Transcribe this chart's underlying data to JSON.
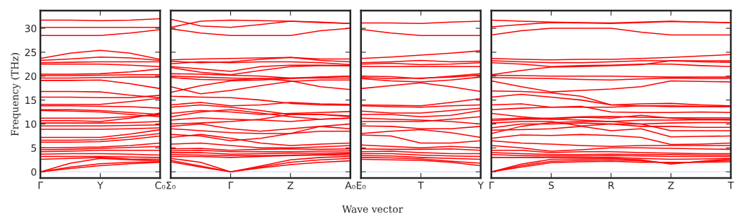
{
  "chart_data": [
    {
      "type": "line",
      "ylabel": "Frequency (THz)",
      "categories": [
        "Γ",
        null,
        "Y",
        null,
        "C₀"
      ],
      "ylim": [
        -1.3,
        33.7
      ],
      "yticks": [
        0,
        5,
        10,
        15,
        20,
        25,
        30
      ],
      "ref_lines": [
        {
          "axis": "y",
          "value": 0,
          "color": "#7777ff",
          "line_style": "dotted"
        }
      ],
      "series": [
        {
          "color": "#ff0000",
          "values": [
            31.7,
            31.7,
            31.6,
            31.7,
            32.0
          ]
        },
        {
          "color": "#ff0000",
          "values": [
            30.2,
            30.2,
            30.2,
            30.2,
            30.2
          ]
        },
        {
          "color": "#ff0000",
          "values": [
            28.5,
            28.5,
            28.5,
            29.0,
            29.7
          ]
        },
        {
          "color": "#ff0000",
          "values": [
            23.7,
            24.8,
            25.4,
            24.8,
            23.5
          ]
        },
        {
          "color": "#ff0000",
          "values": [
            23.3,
            23.6,
            24.0,
            23.8,
            23.3
          ]
        },
        {
          "color": "#ff0000",
          "values": [
            22.8,
            22.9,
            23.0,
            23.0,
            23.0
          ]
        },
        {
          "color": "#ff0000",
          "values": [
            22.5,
            22.5,
            22.5,
            22.3,
            22.0
          ]
        },
        {
          "color": "#ff0000",
          "values": [
            20.4,
            20.4,
            20.5,
            20.9,
            21.5
          ]
        },
        {
          "color": "#ff0000",
          "values": [
            20.1,
            20.1,
            20.2,
            20.3,
            20.3
          ]
        },
        {
          "color": "#ff0000",
          "values": [
            19.6,
            19.6,
            19.7,
            19.8,
            19.8
          ]
        },
        {
          "color": "#ff0000",
          "values": [
            19.1,
            19.1,
            19.2,
            18.4,
            17.4
          ]
        },
        {
          "color": "#ff0000",
          "values": [
            16.8,
            16.8,
            16.7,
            16.0,
            15.5
          ]
        },
        {
          "color": "#ff0000",
          "values": [
            15.6,
            15.6,
            15.5,
            15.5,
            16.0
          ]
        },
        {
          "color": "#ff0000",
          "values": [
            14.1,
            14.1,
            14.1,
            14.7,
            15.4
          ]
        },
        {
          "color": "#ff0000",
          "values": [
            13.8,
            13.8,
            13.7,
            13.6,
            13.3
          ]
        },
        {
          "color": "#ff0000",
          "values": [
            13.0,
            13.0,
            12.8,
            12.4,
            12.0
          ]
        },
        {
          "color": "#ff0000",
          "values": [
            12.8,
            12.7,
            12.5,
            12.0,
            11.5
          ]
        },
        {
          "color": "#ff0000",
          "values": [
            11.2,
            11.2,
            11.2,
            11.5,
            11.9
          ]
        },
        {
          "color": "#ff0000",
          "values": [
            10.7,
            10.7,
            10.5,
            11.2,
            12.3
          ]
        },
        {
          "color": "#ff0000",
          "values": [
            10.2,
            10.2,
            10.2,
            10.3,
            10.5
          ]
        },
        {
          "color": "#ff0000",
          "values": [
            9.6,
            9.6,
            9.6,
            9.7,
            9.8
          ]
        },
        {
          "color": "#ff0000",
          "values": [
            8.9,
            8.9,
            8.9,
            9.0,
            9.2
          ]
        },
        {
          "color": "#ff0000",
          "values": [
            7.2,
            7.2,
            7.2,
            7.9,
            8.8
          ]
        },
        {
          "color": "#ff0000",
          "values": [
            6.6,
            6.6,
            6.7,
            7.3,
            8.0
          ]
        },
        {
          "color": "#ff0000",
          "values": [
            6.2,
            6.2,
            6.3,
            6.8,
            7.5
          ]
        },
        {
          "color": "#ff0000",
          "values": [
            5.0,
            5.1,
            5.2,
            5.5,
            6.0
          ]
        },
        {
          "color": "#ff0000",
          "values": [
            4.6,
            4.7,
            4.9,
            5.1,
            5.3
          ]
        },
        {
          "color": "#ff0000",
          "values": [
            4.2,
            4.3,
            4.5,
            4.5,
            4.5
          ]
        },
        {
          "color": "#ff0000",
          "values": [
            3.7,
            3.8,
            3.8,
            3.7,
            3.5
          ]
        },
        {
          "color": "#ff0000",
          "values": [
            3.2,
            3.2,
            3.2,
            3.1,
            3.0
          ]
        },
        {
          "color": "#ff0000",
          "values": [
            2.6,
            2.8,
            3.0,
            2.7,
            2.6
          ]
        },
        {
          "color": "#ff0000",
          "values": [
            0,
            1.8,
            2.8,
            2.5,
            2.3
          ]
        },
        {
          "color": "#ff0000",
          "values": [
            0,
            1.0,
            1.7,
            2.0,
            2.1
          ]
        },
        {
          "color": "#ff0000",
          "values": [
            0,
            0.7,
            1.3,
            1.7,
            2.0
          ]
        }
      ]
    },
    {
      "type": "line",
      "xlabel": "Wave vector",
      "tick_labels": "x",
      "categories": [
        "Σ₀",
        null,
        "Γ",
        null,
        "Z",
        null,
        "A₀"
      ],
      "ylim": [
        -1.3,
        33.7
      ],
      "yticks": [
        0,
        5,
        10,
        15,
        20,
        25,
        30
      ],
      "ref_lines": [
        {
          "axis": "y",
          "value": 0,
          "color": "#7777ff",
          "line_style": "dotted"
        }
      ],
      "series": [
        {
          "color": "#ff0000",
          "values": [
            31.9,
            30.5,
            30.2,
            30.8,
            31.5,
            31.3,
            31.0
          ]
        },
        {
          "color": "#ff0000",
          "values": [
            30.2,
            31.5,
            31.7,
            31.6,
            31.5,
            31.2,
            31.0
          ]
        },
        {
          "color": "#ff0000",
          "values": [
            29.9,
            29.0,
            28.5,
            28.5,
            28.5,
            29.5,
            30.0
          ]
        },
        {
          "color": "#ff0000",
          "values": [
            23.4,
            23.6,
            23.7,
            23.8,
            23.9,
            23.6,
            23.6
          ]
        },
        {
          "color": "#ff0000",
          "values": [
            23.1,
            22.8,
            23.0,
            23.5,
            23.9,
            23.3,
            23.0
          ]
        },
        {
          "color": "#ff0000",
          "values": [
            22.6,
            23.0,
            22.8,
            23.0,
            23.0,
            22.8,
            22.4
          ]
        },
        {
          "color": "#ff0000",
          "values": [
            22.0,
            21.5,
            21.0,
            22.0,
            22.3,
            22.3,
            22.2
          ]
        },
        {
          "color": "#ff0000",
          "values": [
            21.8,
            20.8,
            20.3,
            21.2,
            22.0,
            22.2,
            22.2
          ]
        },
        {
          "color": "#ff0000",
          "values": [
            20.5,
            20.4,
            20.2,
            20.0,
            19.6,
            19.8,
            20.0
          ]
        },
        {
          "color": "#ff0000",
          "values": [
            20.0,
            19.8,
            19.6,
            19.5,
            19.6,
            19.6,
            19.6
          ]
        },
        {
          "color": "#ff0000",
          "values": [
            19.7,
            19.3,
            19.2,
            19.5,
            19.0,
            17.8,
            17.2
          ]
        },
        {
          "color": "#ff0000",
          "values": [
            17.8,
            16.3,
            17.0,
            18.0,
            18.9,
            19.2,
            19.2
          ]
        },
        {
          "color": "#ff0000",
          "values": [
            16.6,
            18.0,
            19.0,
            19.2,
            19.5,
            19.8,
            20.0
          ]
        },
        {
          "color": "#ff0000",
          "values": [
            15.8,
            15.6,
            15.5,
            15.0,
            14.3,
            14.0,
            13.9
          ]
        },
        {
          "color": "#ff0000",
          "values": [
            14.0,
            14.5,
            13.8,
            14.0,
            14.5,
            14.2,
            14.1
          ]
        },
        {
          "color": "#ff0000",
          "values": [
            13.5,
            14.0,
            13.5,
            12.8,
            12.0,
            12.0,
            11.7
          ]
        },
        {
          "color": "#ff0000",
          "values": [
            12.2,
            12.8,
            12.5,
            12.0,
            12.2,
            12.4,
            12.6
          ]
        },
        {
          "color": "#ff0000",
          "values": [
            11.5,
            12.5,
            13.0,
            12.3,
            11.5,
            11.0,
            11.2
          ]
        },
        {
          "color": "#ff0000",
          "values": [
            10.8,
            11.3,
            11.0,
            10.8,
            10.5,
            11.0,
            11.2
          ]
        },
        {
          "color": "#ff0000",
          "values": [
            10.0,
            10.2,
            10.5,
            11.0,
            12.0,
            12.0,
            11.5
          ]
        },
        {
          "color": "#ff0000",
          "values": [
            9.5,
            10.0,
            9.0,
            8.5,
            9.0,
            9.5,
            10.0
          ]
        },
        {
          "color": "#ff0000",
          "values": [
            9.0,
            8.6,
            8.2,
            8.0,
            8.0,
            8.5,
            8.5
          ]
        },
        {
          "color": "#ff0000",
          "values": [
            7.8,
            7.5,
            6.5,
            7.0,
            8.0,
            9.5,
            9.0
          ]
        },
        {
          "color": "#ff0000",
          "values": [
            7.2,
            7.8,
            7.0,
            6.0,
            5.5,
            5.8,
            6.0
          ]
        },
        {
          "color": "#ff0000",
          "values": [
            5.8,
            6.0,
            5.5,
            5.0,
            5.0,
            5.2,
            5.5
          ]
        },
        {
          "color": "#ff0000",
          "values": [
            4.8,
            4.9,
            4.5,
            4.7,
            4.8,
            4.7,
            4.8
          ]
        },
        {
          "color": "#ff0000",
          "values": [
            4.4,
            4.5,
            4.2,
            4.2,
            4.2,
            4.3,
            4.4
          ]
        },
        {
          "color": "#ff0000",
          "values": [
            4.0,
            4.0,
            3.7,
            3.8,
            3.9,
            3.9,
            4.0
          ]
        },
        {
          "color": "#ff0000",
          "values": [
            3.6,
            3.5,
            3.4,
            3.4,
            3.5,
            3.6,
            3.8
          ]
        },
        {
          "color": "#ff0000",
          "values": [
            3.2,
            3.2,
            3.0,
            3.2,
            3.4,
            3.5,
            3.5
          ]
        },
        {
          "color": "#ff0000",
          "values": [
            2.8,
            2.0,
            0,
            1.2,
            2.5,
            3.0,
            3.2
          ]
        },
        {
          "color": "#ff0000",
          "values": [
            2.4,
            1.2,
            0,
            1.0,
            2.0,
            2.5,
            2.8
          ]
        },
        {
          "color": "#ff0000",
          "values": [
            2.1,
            1.0,
            0,
            0.8,
            1.5,
            2.0,
            2.3
          ]
        }
      ]
    },
    {
      "type": "line",
      "tick_labels": "x",
      "categories": [
        "E₀",
        null,
        "T",
        null,
        "Y"
      ],
      "ylim": [
        -1.3,
        33.7
      ],
      "yticks": [
        0,
        5,
        10,
        15,
        20,
        25,
        30
      ],
      "ref_lines": [
        {
          "axis": "y",
          "value": 0,
          "color": "#7777ff",
          "line_style": "dotted"
        }
      ],
      "series": [
        {
          "color": "#ff0000",
          "values": [
            31.1,
            31.1,
            31.0,
            31.3,
            31.5
          ]
        },
        {
          "color": "#ff0000",
          "values": [
            29.8,
            29.0,
            28.5,
            28.5,
            28.5
          ]
        },
        {
          "color": "#ff0000",
          "values": [
            23.7,
            24.0,
            24.4,
            24.8,
            25.3
          ]
        },
        {
          "color": "#ff0000",
          "values": [
            22.8,
            23.0,
            23.3,
            23.0,
            23.1
          ]
        },
        {
          "color": "#ff0000",
          "values": [
            22.5,
            22.7,
            22.4,
            22.5,
            22.8
          ]
        },
        {
          "color": "#ff0000",
          "values": [
            22.0,
            22.0,
            22.0,
            22.0,
            22.0
          ]
        },
        {
          "color": "#ff0000",
          "values": [
            20.0,
            19.9,
            19.5,
            20.0,
            20.5
          ]
        },
        {
          "color": "#ff0000",
          "values": [
            19.7,
            19.5,
            19.6,
            19.8,
            20.2
          ]
        },
        {
          "color": "#ff0000",
          "values": [
            19.5,
            19.0,
            18.8,
            19.2,
            19.8
          ]
        },
        {
          "color": "#ff0000",
          "values": [
            17.4,
            18.0,
            18.6,
            17.8,
            16.8
          ]
        },
        {
          "color": "#ff0000",
          "values": [
            14.0,
            13.9,
            13.8,
            14.5,
            15.3
          ]
        },
        {
          "color": "#ff0000",
          "values": [
            13.8,
            13.6,
            13.5,
            13.8,
            14.0
          ]
        },
        {
          "color": "#ff0000",
          "values": [
            12.7,
            12.3,
            12.3,
            12.8,
            13.3
          ]
        },
        {
          "color": "#ff0000",
          "values": [
            12.0,
            12.0,
            11.5,
            11.8,
            12.8
          ]
        },
        {
          "color": "#ff0000",
          "values": [
            11.2,
            11.0,
            10.8,
            10.5,
            10.0
          ]
        },
        {
          "color": "#ff0000",
          "values": [
            10.5,
            10.5,
            10.5,
            11.0,
            11.5
          ]
        },
        {
          "color": "#ff0000",
          "values": [
            9.6,
            9.5,
            9.0,
            9.0,
            9.5
          ]
        },
        {
          "color": "#ff0000",
          "values": [
            8.0,
            8.5,
            8.8,
            8.2,
            7.2
          ]
        },
        {
          "color": "#ff0000",
          "values": [
            7.7,
            7.5,
            6.0,
            6.0,
            6.5
          ]
        },
        {
          "color": "#ff0000",
          "values": [
            5.6,
            5.3,
            5.0,
            5.3,
            5.0
          ]
        },
        {
          "color": "#ff0000",
          "values": [
            4.8,
            4.7,
            4.7,
            4.8,
            4.5
          ]
        },
        {
          "color": "#ff0000",
          "values": [
            4.2,
            4.3,
            4.0,
            3.8,
            3.8
          ]
        },
        {
          "color": "#ff0000",
          "values": [
            3.8,
            3.8,
            3.5,
            3.3,
            3.2
          ]
        },
        {
          "color": "#ff0000",
          "values": [
            3.4,
            3.3,
            3.0,
            2.8,
            2.6
          ]
        },
        {
          "color": "#ff0000",
          "values": [
            3.0,
            2.9,
            2.7,
            2.2,
            1.8
          ]
        },
        {
          "color": "#ff0000",
          "values": [
            2.6,
            2.5,
            2.4,
            2.0,
            1.3
          ]
        }
      ]
    },
    {
      "type": "line",
      "tick_labels": "x",
      "categories": [
        "Γ",
        null,
        "S",
        null,
        "R",
        null,
        "Z",
        null,
        "T"
      ],
      "ylim": [
        -1.3,
        33.7
      ],
      "yticks": [
        0,
        5,
        10,
        15,
        20,
        25,
        30
      ],
      "ref_lines": [
        {
          "axis": "y",
          "value": 0,
          "color": "#7777ff",
          "line_style": "dotted"
        }
      ],
      "series": [
        {
          "color": "#ff0000",
          "values": [
            31.7,
            31.5,
            31.3,
            31.2,
            31.1,
            31.3,
            31.5,
            31.3,
            31.2
          ]
        },
        {
          "color": "#ff0000",
          "values": [
            30.3,
            30.8,
            31.2,
            31.1,
            31.0,
            31.2,
            31.4,
            31.3,
            31.2
          ]
        },
        {
          "color": "#ff0000",
          "values": [
            28.6,
            29.5,
            30.0,
            30.0,
            30.0,
            29.2,
            28.6,
            28.6,
            28.6
          ]
        },
        {
          "color": "#ff0000",
          "values": [
            23.7,
            23.5,
            23.4,
            23.5,
            23.5,
            23.7,
            23.9,
            24.2,
            24.5
          ]
        },
        {
          "color": "#ff0000",
          "values": [
            23.2,
            23.0,
            22.8,
            22.8,
            23.0,
            23.2,
            23.2,
            23.0,
            22.9
          ]
        },
        {
          "color": "#ff0000",
          "values": [
            22.8,
            22.5,
            22.0,
            22.2,
            22.3,
            22.5,
            22.5,
            22.2,
            22.0
          ]
        },
        {
          "color": "#ff0000",
          "values": [
            20.3,
            21.2,
            21.9,
            22.0,
            22.2,
            22.4,
            23.2,
            23.2,
            23.2
          ]
        },
        {
          "color": "#ff0000",
          "values": [
            20.2,
            20.1,
            20.0,
            20.0,
            20.0,
            19.9,
            19.8,
            19.8,
            19.8
          ]
        },
        {
          "color": "#ff0000",
          "values": [
            19.7,
            19.6,
            19.5,
            19.3,
            19.2,
            19.4,
            19.6,
            19.5,
            19.5
          ]
        },
        {
          "color": "#ff0000",
          "values": [
            19.0,
            17.8,
            16.7,
            17.0,
            17.3,
            17.8,
            19.0,
            18.9,
            18.8
          ]
        },
        {
          "color": "#ff0000",
          "values": [
            16.9,
            16.8,
            16.5,
            15.8,
            14.0,
            14.2,
            14.3,
            14.0,
            13.8
          ]
        },
        {
          "color": "#ff0000",
          "values": [
            15.6,
            16.2,
            15.6,
            15.0,
            14.0,
            13.8,
            13.8,
            13.7,
            13.6
          ]
        },
        {
          "color": "#ff0000",
          "values": [
            14.0,
            14.2,
            13.5,
            13.5,
            13.5,
            13.8,
            13.6,
            13.6,
            13.6
          ]
        },
        {
          "color": "#ff0000",
          "values": [
            13.0,
            13.3,
            13.5,
            13.7,
            12.5,
            12.4,
            12.4,
            12.5,
            12.4
          ]
        },
        {
          "color": "#ff0000",
          "values": [
            12.2,
            11.5,
            11.0,
            11.4,
            11.2,
            11.8,
            11.2,
            11.0,
            11.0
          ]
        },
        {
          "color": "#ff0000",
          "values": [
            11.0,
            11.2,
            11.2,
            11.5,
            11.6,
            11.4,
            11.3,
            11.3,
            11.3
          ]
        },
        {
          "color": "#ff0000",
          "values": [
            10.7,
            11.0,
            11.0,
            10.8,
            10.5,
            10.8,
            10.8,
            10.9,
            10.8
          ]
        },
        {
          "color": "#ff0000",
          "values": [
            10.2,
            10.5,
            10.5,
            9.6,
            10.0,
            9.5,
            9.5,
            9.3,
            9.3
          ]
        },
        {
          "color": "#ff0000",
          "values": [
            9.2,
            10.0,
            10.0,
            10.2,
            10.0,
            10.0,
            10.2,
            10.3,
            10.3
          ]
        },
        {
          "color": "#ff0000",
          "values": [
            8.7,
            8.8,
            9.0,
            9.5,
            8.6,
            9.0,
            7.3,
            7.4,
            7.5
          ]
        },
        {
          "color": "#ff0000",
          "values": [
            8.0,
            9.5,
            10.3,
            10.5,
            10.5,
            10.0,
            8.6,
            8.6,
            8.6
          ]
        },
        {
          "color": "#ff0000",
          "values": [
            7.0,
            7.7,
            7.6,
            7.8,
            7.6,
            7.2,
            5.7,
            5.8,
            6.0
          ]
        },
        {
          "color": "#ff0000",
          "values": [
            6.5,
            6.0,
            5.8,
            5.5,
            5.3,
            5.5,
            5.5,
            5.5,
            5.5
          ]
        },
        {
          "color": "#ff0000",
          "values": [
            5.5,
            5.0,
            4.3,
            4.6,
            5.0,
            5.0,
            4.9,
            4.8,
            4.7
          ]
        },
        {
          "color": "#ff0000",
          "values": [
            4.5,
            4.5,
            4.0,
            4.2,
            4.2,
            4.0,
            3.9,
            3.8,
            3.8
          ]
        },
        {
          "color": "#ff0000",
          "values": [
            4.0,
            3.8,
            3.6,
            3.6,
            3.7,
            3.6,
            3.6,
            3.5,
            3.5
          ]
        },
        {
          "color": "#ff0000",
          "values": [
            3.6,
            3.4,
            3.3,
            3.3,
            3.4,
            3.3,
            3.2,
            3.2,
            3.2
          ]
        },
        {
          "color": "#ff0000",
          "values": [
            3.0,
            3.0,
            3.0,
            3.0,
            3.0,
            2.8,
            2.6,
            2.7,
            2.8
          ]
        },
        {
          "color": "#ff0000",
          "values": [
            0,
            1.6,
            2.6,
            2.7,
            2.8,
            2.5,
            1.6,
            2.2,
            2.7
          ]
        },
        {
          "color": "#ff0000",
          "values": [
            0,
            1.3,
            2.2,
            2.4,
            2.5,
            2.3,
            1.8,
            2.1,
            2.4
          ]
        },
        {
          "color": "#ff0000",
          "values": [
            0,
            1.0,
            1.9,
            2.1,
            2.2,
            2.0,
            2.0,
            2.0,
            2.1
          ]
        }
      ]
    }
  ]
}
